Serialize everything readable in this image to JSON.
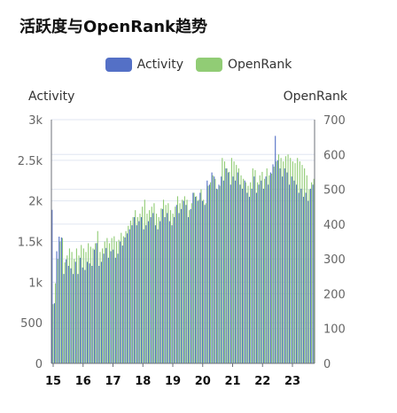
{
  "chart_data": {
    "type": "bar",
    "title": "活跃度与OpenRank趋势",
    "legend_position": "top-center",
    "grid": true,
    "x_labels": [
      "15",
      "16",
      "17",
      "18",
      "19",
      "20",
      "21",
      "22",
      "23"
    ],
    "y_left": {
      "name": "Activity",
      "range": [
        0,
        3000
      ],
      "tick_labels": [
        "0",
        "500",
        "1k",
        "1.5k",
        "2k",
        "2.5k",
        "3k"
      ],
      "tick_values": [
        0,
        500,
        1000,
        1500,
        2000,
        2500,
        3000
      ]
    },
    "y_right": {
      "name": "OpenRank",
      "range": [
        0,
        700
      ],
      "tick_labels": [
        "0",
        "100",
        "200",
        "300",
        "400",
        "500",
        "600",
        "700"
      ],
      "tick_values": [
        0,
        100,
        200,
        300,
        400,
        500,
        600,
        700
      ]
    },
    "series": [
      {
        "name": "Activity",
        "axis": "left",
        "color": "#5470c6",
        "values": [
          1890,
          740,
          1380,
          1560,
          1550,
          1100,
          1280,
          1200,
          1170,
          1100,
          1250,
          1100,
          1300,
          1180,
          1150,
          1250,
          1230,
          1200,
          1400,
          1480,
          1200,
          1250,
          1350,
          1420,
          1300,
          1380,
          1400,
          1300,
          1350,
          1500,
          1450,
          1550,
          1600,
          1650,
          1700,
          1800,
          1700,
          1750,
          1800,
          1650,
          1700,
          1750,
          1800,
          1850,
          1700,
          1650,
          1750,
          1900,
          1800,
          1850,
          1750,
          1700,
          1800,
          1950,
          1850,
          1900,
          2000,
          1950,
          1800,
          1900,
          2100,
          2050,
          2000,
          2100,
          2000,
          1950,
          2250,
          2200,
          2350,
          2300,
          2150,
          2200,
          2300,
          2250,
          2400,
          2350,
          2200,
          2300,
          2250,
          2350,
          2200,
          2150,
          2250,
          2100,
          2050,
          2150,
          2300,
          2100,
          2200,
          2250,
          2150,
          2300,
          2200,
          2350,
          2450,
          2800,
          2500,
          2400,
          2300,
          2400,
          2350,
          2200,
          2300,
          2250,
          2200,
          2100,
          2150,
          2050,
          2100,
          2000,
          2150,
          2200
        ],
        "unit_note": ""
      },
      {
        "name": "OpenRank",
        "axis": "right",
        "color": "#91cc75",
        "values": [
          170,
          230,
          300,
          350,
          360,
          290,
          310,
          330,
          320,
          300,
          330,
          310,
          340,
          330,
          320,
          345,
          335,
          330,
          345,
          380,
          320,
          330,
          350,
          360,
          345,
          360,
          365,
          350,
          355,
          375,
          365,
          380,
          395,
          410,
          420,
          440,
          420,
          430,
          450,
          470,
          430,
          440,
          450,
          460,
          430,
          420,
          445,
          470,
          455,
          460,
          440,
          430,
          450,
          480,
          460,
          470,
          480,
          470,
          440,
          460,
          490,
          480,
          470,
          500,
          470,
          460,
          510,
          520,
          540,
          530,
          500,
          510,
          590,
          580,
          560,
          550,
          590,
          580,
          570,
          560,
          540,
          530,
          520,
          510,
          520,
          560,
          555,
          520,
          540,
          550,
          530,
          560,
          540,
          545,
          565,
          580,
          600,
          590,
          580,
          595,
          600,
          590,
          580,
          575,
          590,
          580,
          570,
          560,
          540,
          500,
          520,
          530
        ]
      }
    ]
  }
}
